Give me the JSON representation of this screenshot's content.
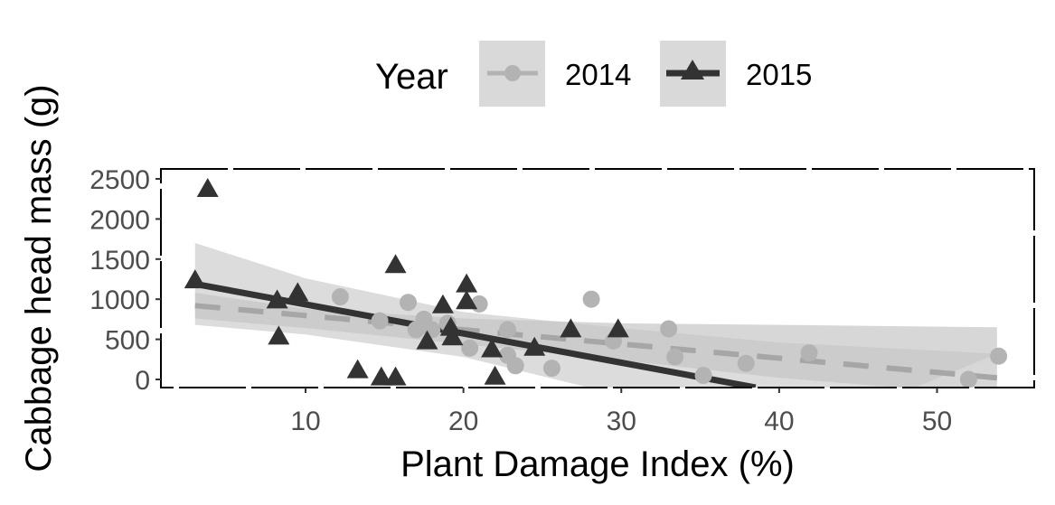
{
  "chart_data": {
    "type": "scatter",
    "xlabel": "Plant Damage Index (%)",
    "ylabel": "Cabbage head mass (g)",
    "xlim": [
      0.5,
      55
    ],
    "ylim": [
      -100,
      2600
    ],
    "x_ticks": [
      10,
      20,
      30,
      40,
      50
    ],
    "y_ticks": [
      0,
      500,
      1000,
      1500,
      2000,
      2500
    ],
    "grid": false,
    "legend": {
      "title": "Year",
      "position": "top",
      "entries": [
        "2014",
        "2015"
      ]
    },
    "series": [
      {
        "name": "2014",
        "marker": "circle",
        "color": "#b3b3b3",
        "line_color": "#a6a6a6",
        "line_style": "dashed",
        "ribbon_color": "#bdbdbd",
        "points": [
          {
            "x": 12.2,
            "y": 1030
          },
          {
            "x": 14.7,
            "y": 730
          },
          {
            "x": 16.5,
            "y": 960
          },
          {
            "x": 17.0,
            "y": 620
          },
          {
            "x": 17.5,
            "y": 750
          },
          {
            "x": 18.0,
            "y": 620
          },
          {
            "x": 19.0,
            "y": 700
          },
          {
            "x": 20.4,
            "y": 390
          },
          {
            "x": 21.0,
            "y": 940
          },
          {
            "x": 22.8,
            "y": 620
          },
          {
            "x": 22.8,
            "y": 300
          },
          {
            "x": 23.3,
            "y": 170
          },
          {
            "x": 25.6,
            "y": 140
          },
          {
            "x": 28.1,
            "y": 1000
          },
          {
            "x": 29.5,
            "y": 480
          },
          {
            "x": 33.0,
            "y": 630
          },
          {
            "x": 33.4,
            "y": 280
          },
          {
            "x": 35.2,
            "y": 50
          },
          {
            "x": 37.9,
            "y": 200
          },
          {
            "x": 41.9,
            "y": 330
          },
          {
            "x": 52.0,
            "y": 0
          },
          {
            "x": 53.9,
            "y": 290
          }
        ],
        "fit": {
          "x": [
            3.0,
            53.8
          ],
          "y": [
            920,
            20
          ]
        },
        "ci_upper": {
          "x": [
            3.0,
            10,
            20,
            30,
            40,
            53.8
          ],
          "y": [
            1080,
            880,
            760,
            700,
            680,
            650
          ]
        },
        "ci_lower": {
          "x": [
            3.0,
            10,
            20,
            30,
            40,
            53.8
          ],
          "y": [
            760,
            640,
            440,
            240,
            20,
            -200
          ]
        }
      },
      {
        "name": "2015",
        "marker": "triangle",
        "color": "#333333",
        "line_color": "#333333",
        "line_style": "solid",
        "ribbon_color": "#c4c4c4",
        "points": [
          {
            "x": 3.0,
            "y": 1230
          },
          {
            "x": 3.8,
            "y": 2370
          },
          {
            "x": 8.2,
            "y": 980
          },
          {
            "x": 8.3,
            "y": 530
          },
          {
            "x": 9.5,
            "y": 1070
          },
          {
            "x": 13.3,
            "y": 110
          },
          {
            "x": 14.8,
            "y": 20
          },
          {
            "x": 15.7,
            "y": 20
          },
          {
            "x": 15.7,
            "y": 1420
          },
          {
            "x": 17.7,
            "y": 470
          },
          {
            "x": 18.7,
            "y": 920
          },
          {
            "x": 19.2,
            "y": 640
          },
          {
            "x": 19.3,
            "y": 520
          },
          {
            "x": 20.2,
            "y": 970
          },
          {
            "x": 20.2,
            "y": 1180
          },
          {
            "x": 21.8,
            "y": 370
          },
          {
            "x": 22.0,
            "y": 30
          },
          {
            "x": 24.5,
            "y": 390
          },
          {
            "x": 26.8,
            "y": 620
          },
          {
            "x": 29.8,
            "y": 620
          }
        ],
        "fit": {
          "x": [
            3.0,
            38.5
          ],
          "y": [
            1190,
            -100
          ]
        },
        "ci_upper": {
          "x": [
            3.0,
            10,
            20,
            30,
            40,
            53.8
          ],
          "y": [
            1700,
            1260,
            840,
            640,
            460,
            320
          ]
        },
        "ci_lower": {
          "x": [
            3.0,
            10,
            20,
            30,
            35,
            40
          ],
          "y": [
            680,
            560,
            280,
            -200,
            -480,
            -800
          ]
        }
      }
    ]
  }
}
